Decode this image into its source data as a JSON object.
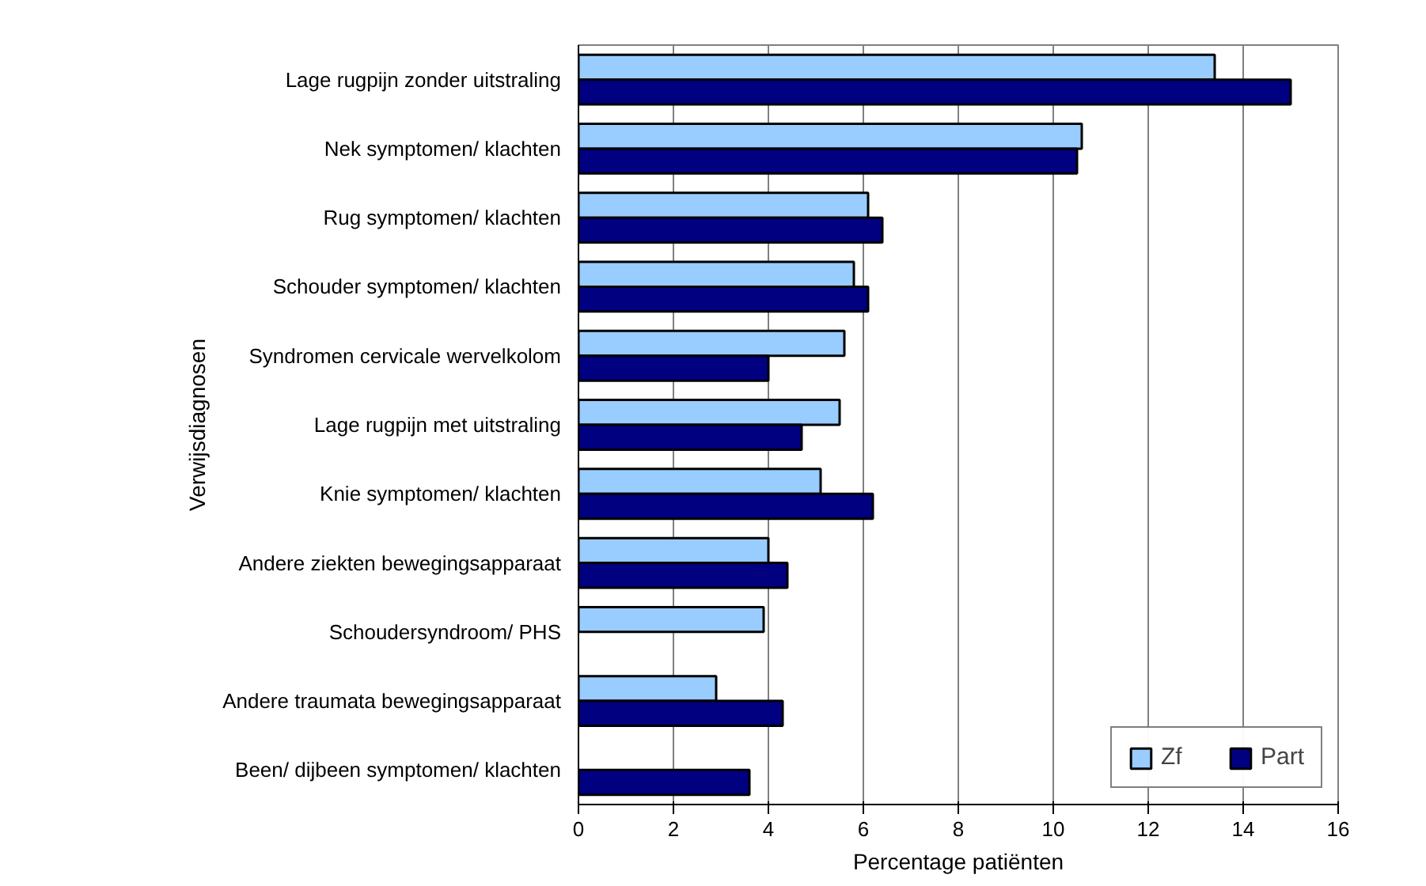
{
  "chart_data": {
    "type": "bar",
    "orientation": "horizontal",
    "ylabel": "Verwijsdiagnosen",
    "xlabel": "Percentage patiënten",
    "categories": [
      "Lage rugpijn zonder uitstraling",
      "Nek symptomen/ klachten",
      "Rug symptomen/ klachten",
      "Schouder symptomen/ klachten",
      "Syndromen cervicale wervelkolom",
      "Lage rugpijn met uitstraling",
      "Knie symptomen/ klachten",
      "Andere ziekten bewegingsapparaat",
      "Schoudersyndroom/ PHS",
      "Andere traumata bewegingsapparaat",
      "Been/ dijbeen symptomen/ klachten"
    ],
    "series": [
      {
        "name": "Zf",
        "color": "#99ccff",
        "values": [
          13.4,
          10.6,
          6.1,
          5.8,
          5.6,
          5.5,
          5.1,
          4.0,
          3.9,
          2.9,
          null
        ]
      },
      {
        "name": "Part",
        "color": "#000080",
        "values": [
          15.0,
          10.5,
          6.4,
          6.1,
          4.0,
          4.7,
          6.2,
          4.4,
          null,
          4.3,
          3.6
        ]
      }
    ],
    "xlim": [
      0,
      16
    ],
    "xticks": [
      0,
      2,
      4,
      6,
      8,
      10,
      12,
      14,
      16
    ],
    "grid": "x",
    "legend": "bottom right"
  }
}
